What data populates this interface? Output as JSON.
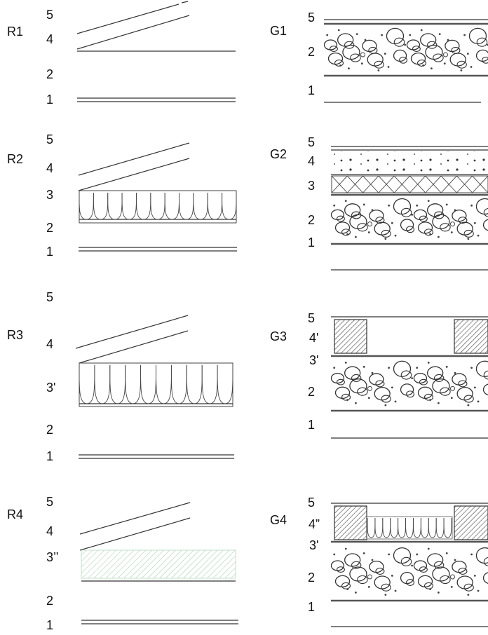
{
  "panels": {
    "R1": {
      "name": "R1",
      "layers": {
        "l5": "5",
        "l4": "4",
        "l2": "2",
        "l1": "1"
      }
    },
    "R2": {
      "name": "R2",
      "layers": {
        "l5": "5",
        "l4": "4",
        "l3": "3",
        "l2": "2",
        "l1": "1"
      }
    },
    "R3": {
      "name": "R3",
      "layers": {
        "l5": "5",
        "l4": "4",
        "l3": "3'",
        "l2": "2",
        "l1": "1"
      }
    },
    "R4": {
      "name": "R4",
      "layers": {
        "l5": "5",
        "l4": "4",
        "l3": "3’’",
        "l2": "2",
        "l1": "1"
      }
    },
    "G1": {
      "name": "G1",
      "layers": {
        "l5": "5",
        "l2": "2",
        "l1": "1"
      }
    },
    "G2": {
      "name": "G2",
      "layers": {
        "l5": "5",
        "l4": "4",
        "l3": "3",
        "l2": "2",
        "l1": "1"
      }
    },
    "G3": {
      "name": "G3",
      "layers": {
        "l5": "5",
        "l4": "4'",
        "l3": "3'",
        "l2": "2",
        "l1": "1"
      }
    },
    "G4": {
      "name": "G4",
      "layers": {
        "l5": "5",
        "l4": "4”",
        "l3": "3'",
        "l2": "2",
        "l1": "1"
      }
    }
  },
  "colors": {
    "line": "#333333",
    "concrete_edge": "#555555",
    "hatch": "#444444",
    "green_hatch": "#9fc9a6"
  }
}
